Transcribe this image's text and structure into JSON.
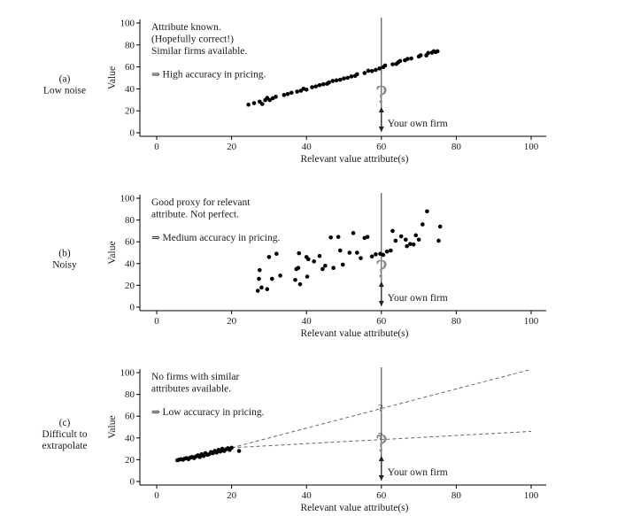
{
  "chart_data": [
    {
      "type": "scatter",
      "side_label": [
        "(a)",
        "Low noise"
      ],
      "annotation_lines": [
        "Attribute known.",
        "(Hopefully correct!)",
        "Similar firms available."
      ],
      "conclusion": "⇒ High accuracy in pricing.",
      "xlabel": "Relevant value attribute(s)",
      "ylabel": "Value",
      "xlim": [
        -5,
        105
      ],
      "ylim": [
        -2,
        102
      ],
      "xticks": [
        0,
        20,
        40,
        60,
        80,
        100
      ],
      "yticks": [
        0,
        20,
        40,
        60,
        80,
        100
      ],
      "own_firm_x": 60,
      "own_firm_label": "Your own firm",
      "points": [
        [
          24.5,
          25.6
        ],
        [
          26,
          27
        ],
        [
          27.5,
          28.3
        ],
        [
          28.2,
          26.2
        ],
        [
          29,
          29.7
        ],
        [
          29.5,
          31.8
        ],
        [
          30.2,
          29.8
        ],
        [
          31,
          31.5
        ],
        [
          31.8,
          32.8
        ],
        [
          34,
          34.4
        ],
        [
          35,
          35.3
        ],
        [
          36,
          36.5
        ],
        [
          37.5,
          37.5
        ],
        [
          38.5,
          38.3
        ],
        [
          39.2,
          40.1
        ],
        [
          40,
          39.3
        ],
        [
          41.5,
          41.5
        ],
        [
          42.5,
          42.2
        ],
        [
          43.5,
          43.4
        ],
        [
          44.5,
          44.2
        ],
        [
          45.5,
          44.7
        ],
        [
          46,
          45.8
        ],
        [
          47,
          47.2
        ],
        [
          48,
          47.7
        ],
        [
          49,
          48.3
        ],
        [
          50,
          49.5
        ],
        [
          51,
          50.1
        ],
        [
          52,
          51.3
        ],
        [
          53,
          51.8
        ],
        [
          53.5,
          53.3
        ],
        [
          55.5,
          54.4
        ],
        [
          56.5,
          56.5
        ],
        [
          57.5,
          56.2
        ],
        [
          58.5,
          57.3
        ],
        [
          59.5,
          58.6
        ],
        [
          60.5,
          59.8
        ],
        [
          61,
          61.3
        ],
        [
          63,
          62.4
        ],
        [
          64,
          62.7
        ],
        [
          64.5,
          64.2
        ],
        [
          65,
          65.4
        ],
        [
          66.3,
          66
        ],
        [
          67,
          67.3
        ],
        [
          68,
          67.7
        ],
        [
          70,
          69.5
        ],
        [
          70.5,
          70.6
        ],
        [
          72,
          70.5
        ],
        [
          72.5,
          72.7
        ],
        [
          73.5,
          73
        ],
        [
          74,
          74.3
        ],
        [
          74.5,
          73.5
        ],
        [
          75,
          74.3
        ]
      ]
    },
    {
      "type": "scatter",
      "side_label": [
        "(b)",
        "Noisy"
      ],
      "annotation_lines": [
        "Good proxy for relevant",
        "attribute. Not perfect."
      ],
      "conclusion": "⇒ Medium accuracy in pricing.",
      "xlabel": "Relevant value attribute(s)",
      "ylabel": "Value",
      "xlim": [
        -5,
        105
      ],
      "ylim": [
        -2,
        102
      ],
      "xticks": [
        0,
        20,
        40,
        60,
        80,
        100
      ],
      "yticks": [
        0,
        20,
        40,
        60,
        80,
        100
      ],
      "own_firm_x": 60,
      "own_firm_label": "Your own firm",
      "points": [
        [
          27,
          15
        ],
        [
          27.3,
          26
        ],
        [
          27.5,
          34
        ],
        [
          28,
          18
        ],
        [
          29.5,
          16.5
        ],
        [
          30,
          46
        ],
        [
          30.8,
          26
        ],
        [
          32,
          49
        ],
        [
          33,
          29
        ],
        [
          37,
          25
        ],
        [
          37.3,
          35
        ],
        [
          37.8,
          36
        ],
        [
          38,
          49.5
        ],
        [
          38.3,
          21
        ],
        [
          40,
          46
        ],
        [
          40.5,
          44
        ],
        [
          40.2,
          28
        ],
        [
          42,
          42
        ],
        [
          43.5,
          47
        ],
        [
          44.3,
          35
        ],
        [
          45,
          38
        ],
        [
          46.5,
          64
        ],
        [
          47.2,
          36
        ],
        [
          48.5,
          64.5
        ],
        [
          49,
          52
        ],
        [
          49.7,
          39
        ],
        [
          51.5,
          50
        ],
        [
          52.5,
          68
        ],
        [
          53.5,
          50
        ],
        [
          54.5,
          45
        ],
        [
          55.5,
          63.5
        ],
        [
          56.3,
          64.5
        ],
        [
          57.5,
          46.5
        ],
        [
          58.5,
          48.5
        ],
        [
          59.7,
          49
        ],
        [
          60.5,
          48
        ],
        [
          61.5,
          51
        ],
        [
          62.5,
          52
        ],
        [
          63,
          70
        ],
        [
          63.8,
          61
        ],
        [
          65.3,
          65
        ],
        [
          66.5,
          62
        ],
        [
          66.8,
          56
        ],
        [
          67.7,
          58
        ],
        [
          68.6,
          57.5
        ],
        [
          69.2,
          66
        ],
        [
          70,
          62
        ],
        [
          71,
          76
        ],
        [
          72.2,
          88
        ],
        [
          75.3,
          61
        ],
        [
          75.7,
          74
        ]
      ]
    },
    {
      "type": "scatter",
      "side_label": [
        "(c)",
        "Difficult to",
        "extrapolate"
      ],
      "annotation_lines": [
        "No firms with similar",
        "attributes available."
      ],
      "conclusion": "⇒ Low  accuracy in pricing.",
      "xlabel": "Relevant value attribute(s)",
      "ylabel": "Value",
      "xlim": [
        -5,
        105
      ],
      "ylim": [
        -2,
        102
      ],
      "xticks": [
        0,
        20,
        40,
        60,
        80,
        100
      ],
      "yticks": [
        0,
        20,
        40,
        60,
        80,
        100
      ],
      "own_firm_x": 60,
      "own_firm_label": "Your own firm",
      "extrapolation_lines": [
        {
          "from": [
            20,
            31
          ],
          "to": [
            100,
            103
          ],
          "mark_label": "?",
          "mark_y": 68
        },
        {
          "from": [
            20,
            31
          ],
          "to": [
            100,
            46
          ],
          "mark_label": "?",
          "mark_y": 42
        }
      ],
      "points": [
        [
          5.5,
          19.5
        ],
        [
          6,
          20
        ],
        [
          6.5,
          20.5
        ],
        [
          7,
          20
        ],
        [
          7.5,
          21
        ],
        [
          8,
          21.5
        ],
        [
          8.5,
          20.5
        ],
        [
          9,
          22
        ],
        [
          9.5,
          22.5
        ],
        [
          10,
          21.5
        ],
        [
          10.5,
          23
        ],
        [
          11,
          24
        ],
        [
          11.5,
          22.5
        ],
        [
          12,
          25
        ],
        [
          12.5,
          23.5
        ],
        [
          13,
          26
        ],
        [
          13.5,
          24.5
        ],
        [
          14,
          25
        ],
        [
          14.5,
          27
        ],
        [
          15,
          26
        ],
        [
          15.5,
          28
        ],
        [
          16,
          26.5
        ],
        [
          16.5,
          29
        ],
        [
          17,
          27.5
        ],
        [
          17.5,
          30
        ],
        [
          18,
          28
        ],
        [
          18.5,
          29.5
        ],
        [
          19,
          30.5
        ],
        [
          19.5,
          29
        ],
        [
          20,
          31
        ],
        [
          22,
          28
        ]
      ]
    }
  ]
}
